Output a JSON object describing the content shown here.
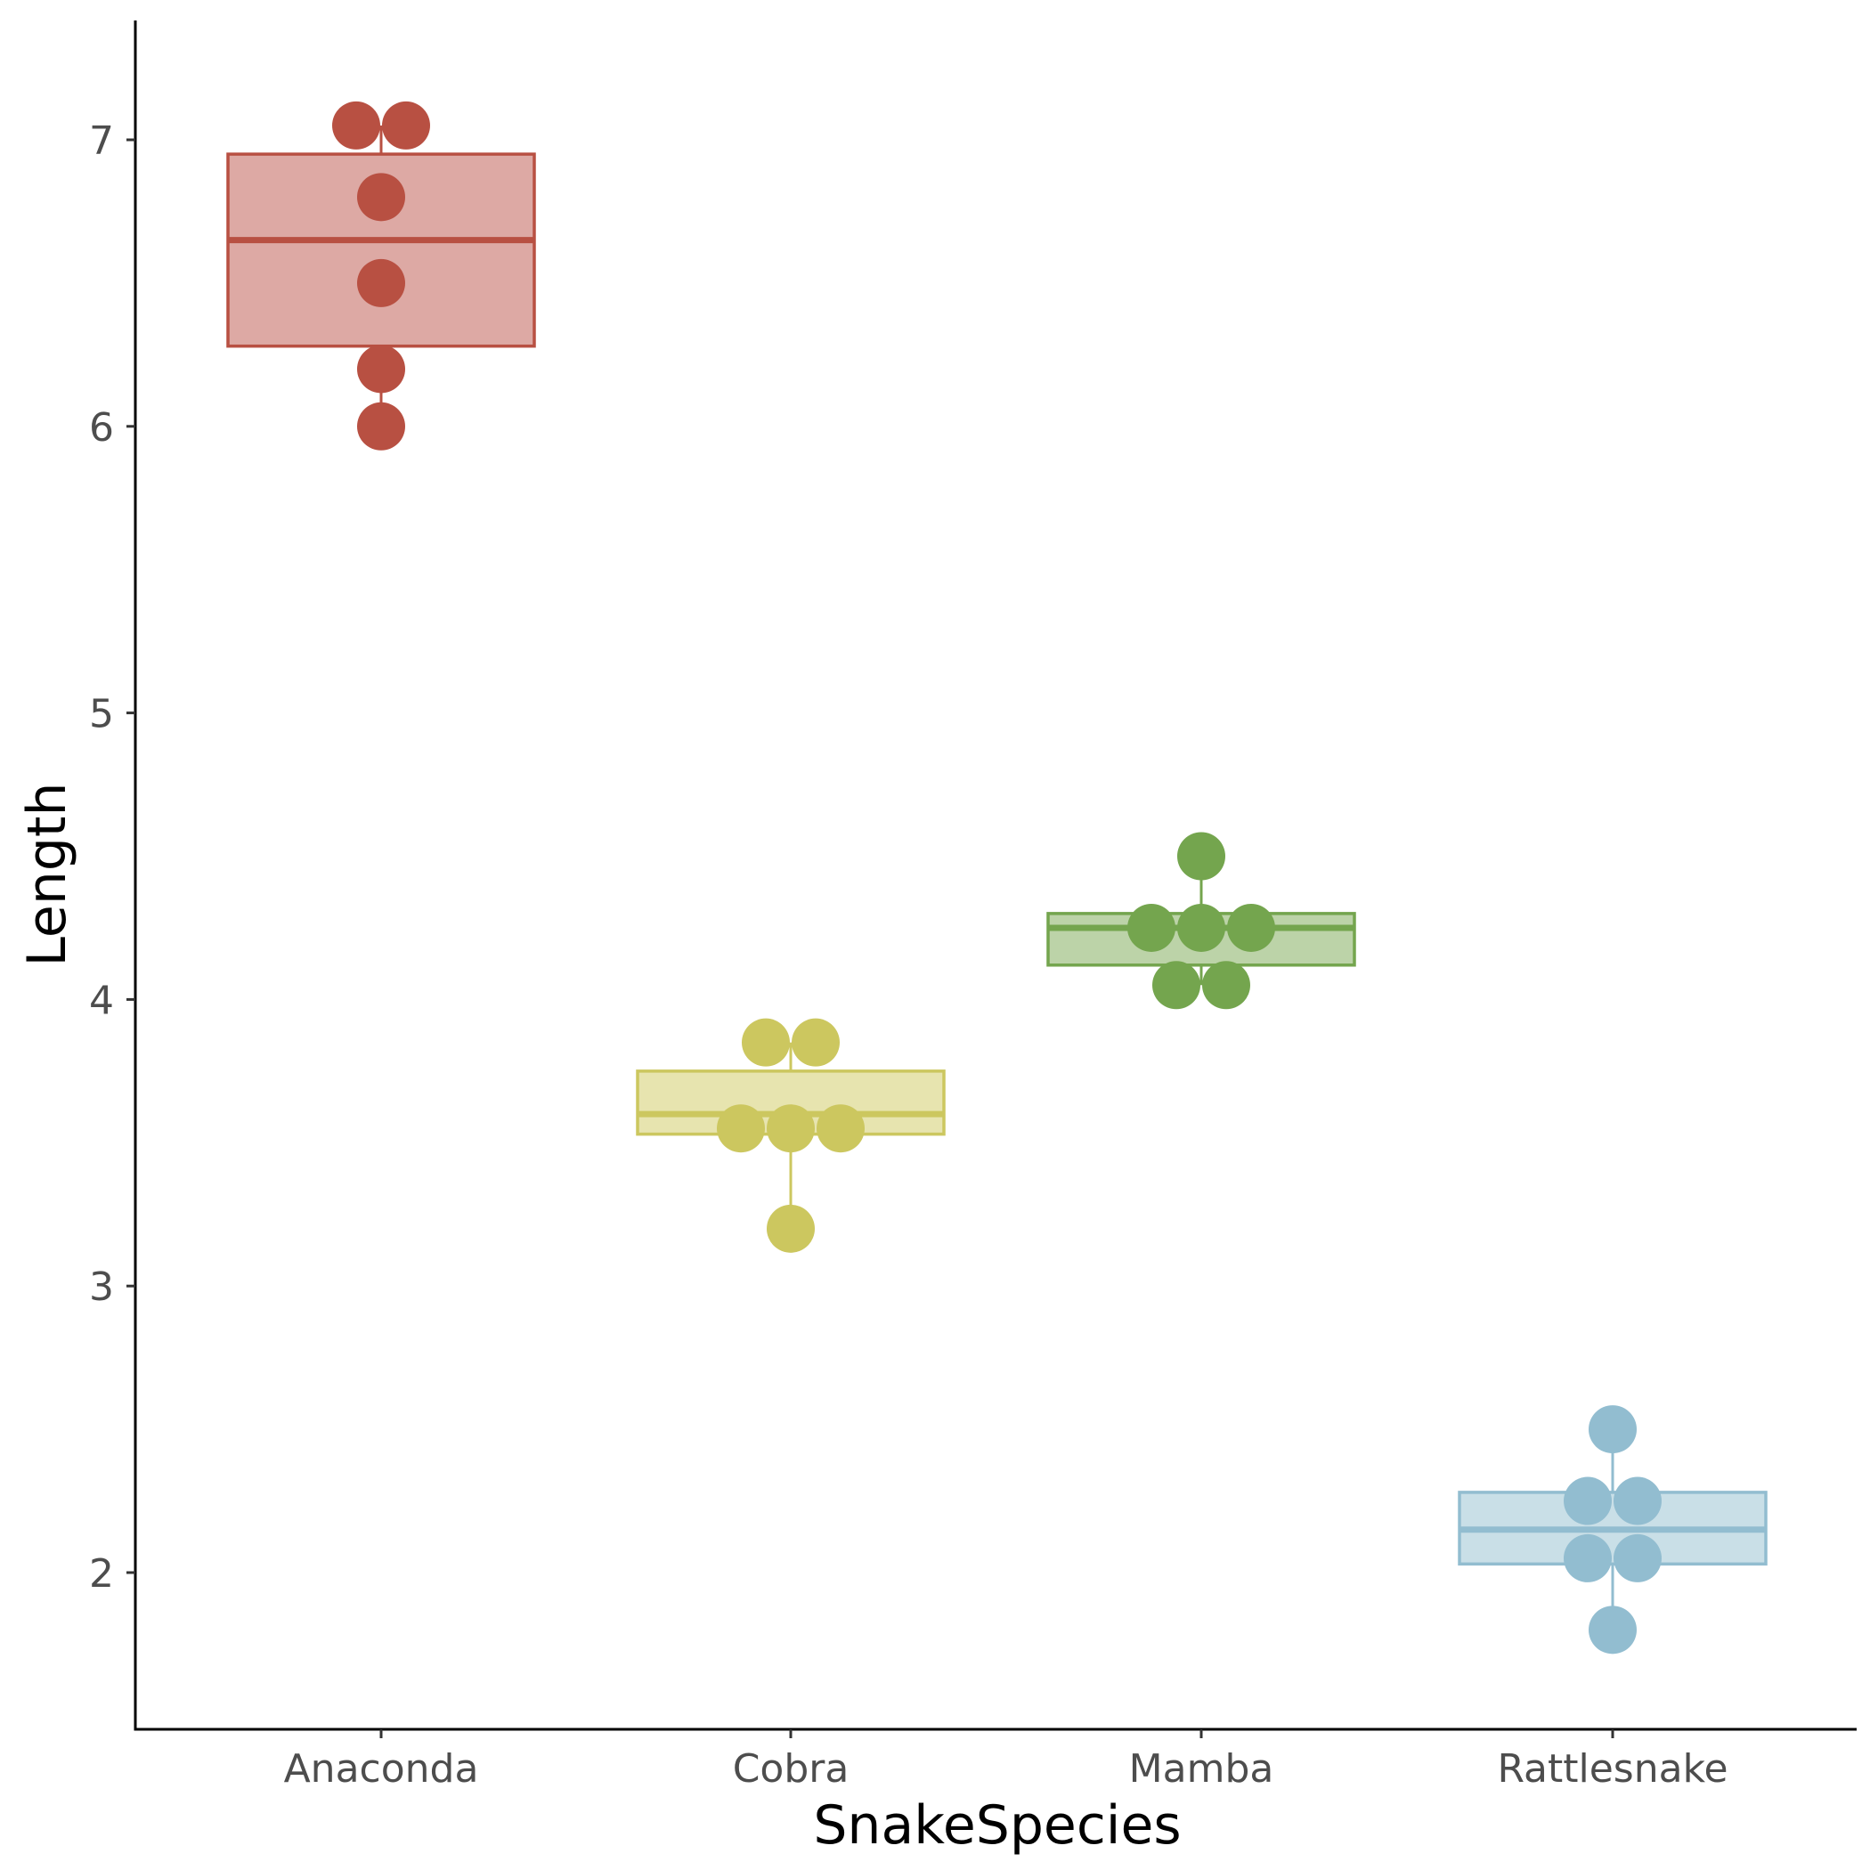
{
  "chart_data": {
    "type": "box",
    "xlabel": "SnakeSpecies",
    "ylabel": "Length",
    "ylim": [
      1.45,
      7.4
    ],
    "yticks": [
      2,
      3,
      4,
      5,
      6,
      7
    ],
    "categories": [
      "Anaconda",
      "Cobra",
      "Mamba",
      "Rattlesnake"
    ],
    "grid": false,
    "legend": "none",
    "series": [
      {
        "category": "Anaconda",
        "color": "#B85042",
        "fill": "#DDA9A4",
        "box": {
          "min": 6.0,
          "q1": 6.28,
          "median": 6.65,
          "q3": 6.95,
          "max": 7.05
        },
        "points": [
          {
            "y": 7.05,
            "dodge": -0.5
          },
          {
            "y": 7.05,
            "dodge": 0.5
          },
          {
            "y": 6.8,
            "dodge": 0
          },
          {
            "y": 6.5,
            "dodge": 0
          },
          {
            "y": 6.2,
            "dodge": 0
          },
          {
            "y": 6.0,
            "dodge": 0
          }
        ]
      },
      {
        "category": "Cobra",
        "color": "#CCC75F",
        "fill": "#E7E4AF",
        "box": {
          "min": 3.2,
          "q1": 3.53,
          "median": 3.6,
          "q3": 3.75,
          "max": 3.85
        },
        "points": [
          {
            "y": 3.85,
            "dodge": -0.5
          },
          {
            "y": 3.85,
            "dodge": 0.5
          },
          {
            "y": 3.55,
            "dodge": -1
          },
          {
            "y": 3.55,
            "dodge": 0
          },
          {
            "y": 3.55,
            "dodge": 1
          },
          {
            "y": 3.2,
            "dodge": 0
          }
        ]
      },
      {
        "category": "Mamba",
        "color": "#74A54E",
        "fill": "#BCD3A8",
        "box": {
          "min": 4.05,
          "q1": 4.12,
          "median": 4.25,
          "q3": 4.3,
          "max": 4.5
        },
        "points": [
          {
            "y": 4.5,
            "dodge": 0
          },
          {
            "y": 4.25,
            "dodge": -1
          },
          {
            "y": 4.25,
            "dodge": 0
          },
          {
            "y": 4.25,
            "dodge": 1
          },
          {
            "y": 4.05,
            "dodge": -0.5
          },
          {
            "y": 4.05,
            "dodge": 0.5
          }
        ]
      },
      {
        "category": "Rattlesnake",
        "color": "#92BDD0",
        "fill": "#C9DFE7",
        "box": {
          "min": 1.8,
          "q1": 2.03,
          "median": 2.15,
          "q3": 2.28,
          "max": 2.5
        },
        "points": [
          {
            "y": 2.5,
            "dodge": 0
          },
          {
            "y": 2.25,
            "dodge": -0.5
          },
          {
            "y": 2.25,
            "dodge": 0.5
          },
          {
            "y": 2.05,
            "dodge": -0.5
          },
          {
            "y": 2.05,
            "dodge": 0.5
          },
          {
            "y": 1.8,
            "dodge": 0
          }
        ]
      }
    ]
  }
}
